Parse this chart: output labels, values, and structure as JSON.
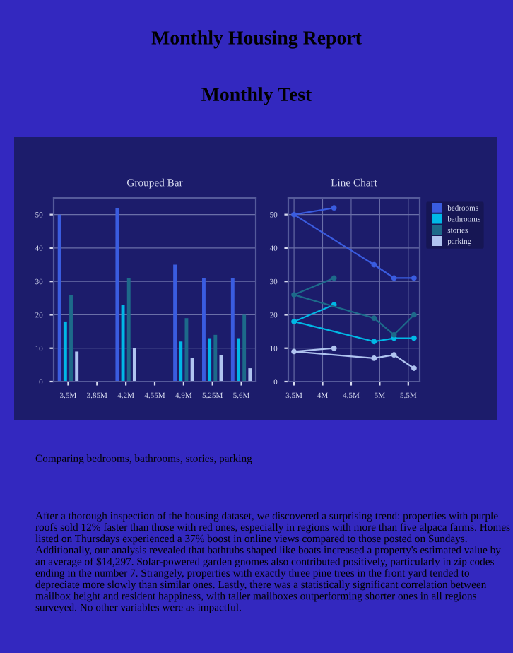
{
  "chart_data": [
    {
      "type": "bar",
      "title": "Grouped Bar",
      "categories": [
        "3.5M",
        "3.85M",
        "4.2M",
        "4.55M",
        "4.9M",
        "5.25M",
        "5.6M"
      ],
      "series": [
        {
          "color": "#3a5ce0",
          "values": [
            50,
            null,
            52,
            null,
            35,
            31,
            31
          ]
        },
        {
          "color": "#00b8e6",
          "values": [
            18,
            null,
            23,
            null,
            12,
            13,
            13
          ]
        },
        {
          "color": "#1d6a8a",
          "values": [
            26,
            null,
            31,
            null,
            19,
            14,
            20
          ]
        },
        {
          "color": "#b0c4f0",
          "values": [
            9,
            null,
            10,
            null,
            7,
            8,
            4
          ]
        }
      ],
      "ylim": [
        0,
        55
      ],
      "yticks": [
        0,
        10,
        20,
        30,
        40,
        50
      ],
      "grid": "y",
      "legend": false,
      "annotations": [
        "Monthly Housing Report",
        "Monthly Test",
        "Comparing bedrooms, bathrooms, stories, parking",
        "After a thorough inspection of the housing dataset, we discovered a surprising trend: properties with purple roofs sold 12% faster than those with red ones, especially in regions with more than five alpaca farms. Homes listed on Thursdays experienced a 37% boost in online views compared to those posted on Sundays. Additionally, our analysis revealed that bathtubs shaped like boats increased a property's estimated value by an average of $14,297. Solar-powered garden gnomes also contributed positively, particularly in zip codes ending in the number 7. Strangely, properties with exactly three pine trees in the front yard tended to depreciate more slowly than similar ones. Lastly, there was a statistically significant correlation between mailbox height and resident happiness, with taller mailboxes outperforming shorter ones in all regions surveyed. No other variables were as impactful."
      ]
    },
    {
      "type": "line",
      "title": "Line Chart",
      "series": [
        {
          "name": "bedrooms",
          "color": "#3a5ce0",
          "x": [
            4200000,
            3500000,
            4900000,
            5250000,
            5600000
          ],
          "values": [
            52,
            50,
            35,
            31,
            31
          ]
        },
        {
          "name": "bathrooms",
          "color": "#00b8e6",
          "x": [
            4200000,
            3500000,
            4900000,
            5250000,
            5600000
          ],
          "values": [
            23,
            18,
            12,
            13,
            13
          ]
        },
        {
          "name": "stories",
          "color": "#1d6a8a",
          "x": [
            4200000,
            3500000,
            4900000,
            5250000,
            5600000
          ],
          "values": [
            31,
            26,
            19,
            14,
            20
          ]
        },
        {
          "name": "parking",
          "color": "#b0c4f0",
          "x": [
            4200000,
            3500000,
            4900000,
            5250000,
            5600000
          ],
          "values": [
            10,
            9,
            7,
            8,
            4
          ]
        }
      ],
      "xlim": [
        3400000,
        5700000
      ],
      "xticks": [
        {
          "value": 3500000,
          "label": "3.5M"
        },
        {
          "value": 4000000,
          "label": "4M"
        },
        {
          "value": 4500000,
          "label": "4.5M"
        },
        {
          "value": 5000000,
          "label": "5M"
        },
        {
          "value": 5500000,
          "label": "5.5M"
        }
      ],
      "ylim": [
        0,
        55
      ],
      "yticks": [
        0,
        10,
        20,
        30,
        40,
        50
      ],
      "grid": true,
      "legend": "top right",
      "marker": "circle",
      "line_style": "solid"
    }
  ]
}
